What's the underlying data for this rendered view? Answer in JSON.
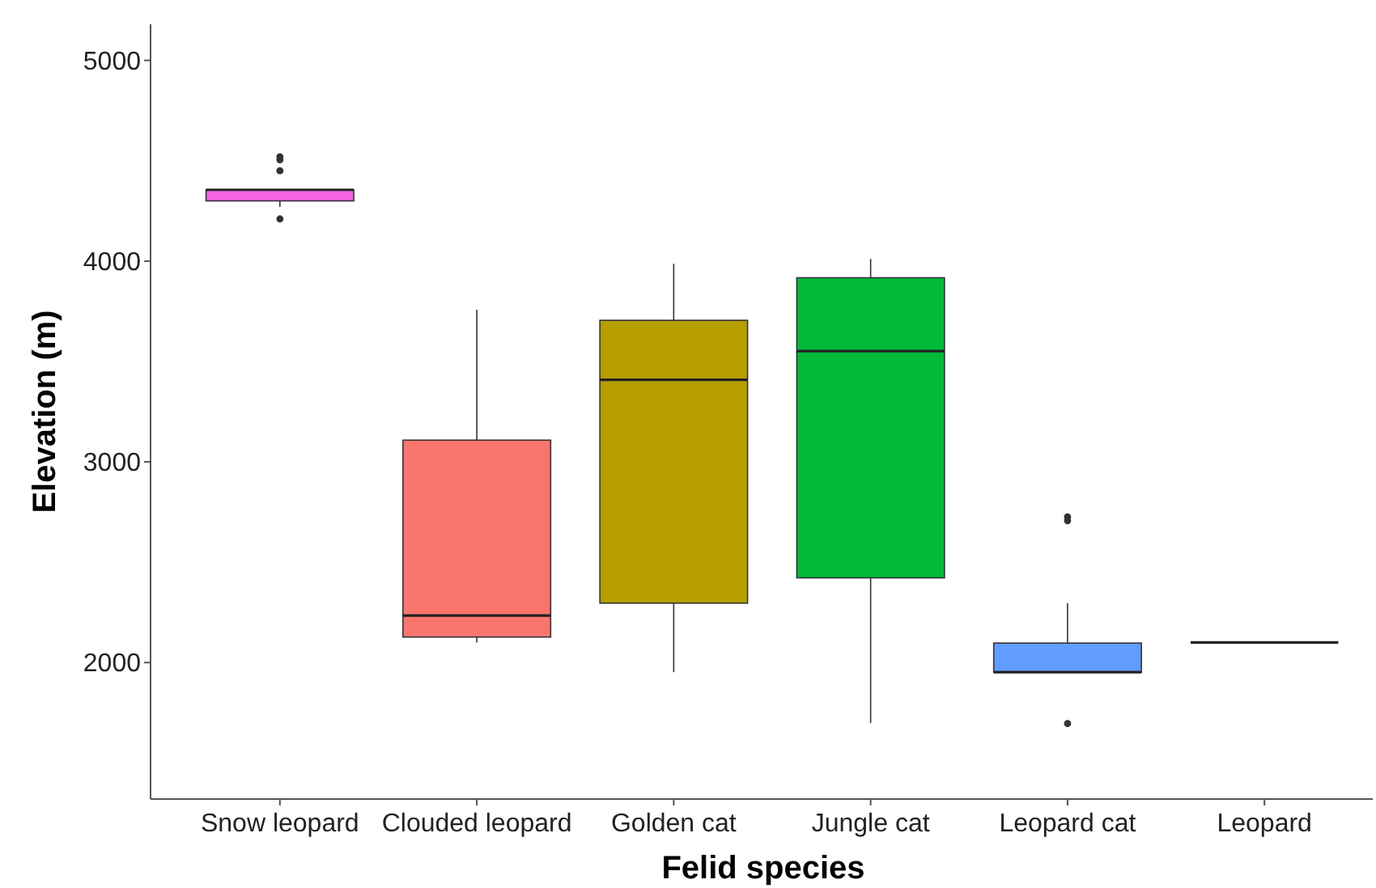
{
  "chart_data": {
    "type": "box",
    "xlabel": "Felid species",
    "ylabel": "Elevation (m)",
    "categories": [
      "Snow leopard",
      "Clouded leopard",
      "Golden cat",
      "Jungle cat",
      "Leopard cat",
      "Leopard"
    ],
    "colors": [
      "#f564e3",
      "#f8766d",
      "#b79f00",
      "#00ba38",
      "#619cff",
      "#222222"
    ],
    "boxes": [
      {
        "low": 4270,
        "q1": 4300,
        "median": 4355,
        "q3": 4355,
        "high": 4355,
        "outliers": [
          4520,
          4505,
          4450,
          4210
        ]
      },
      {
        "low": 2100,
        "q1": 2127,
        "median": 2234,
        "q3": 3108,
        "high": 3758
      },
      {
        "low": 1952,
        "q1": 2296,
        "median": 3409,
        "q3": 3705,
        "high": 3987
      },
      {
        "low": 1699,
        "q1": 2422,
        "median": 3552,
        "q3": 3917,
        "high": 4011
      },
      {
        "low": 1952,
        "q1": 1952,
        "median": 1952,
        "q3": 2097,
        "high": 2296,
        "outliers": [
          2726,
          2707,
          1696
        ]
      },
      {
        "low": 2100,
        "q1": 2100,
        "median": 2100,
        "q3": 2100,
        "high": 2100
      }
    ],
    "ylim": [
      1320,
      5180
    ],
    "yticks": [
      2000,
      3000,
      4000,
      5000
    ],
    "grid": false
  }
}
